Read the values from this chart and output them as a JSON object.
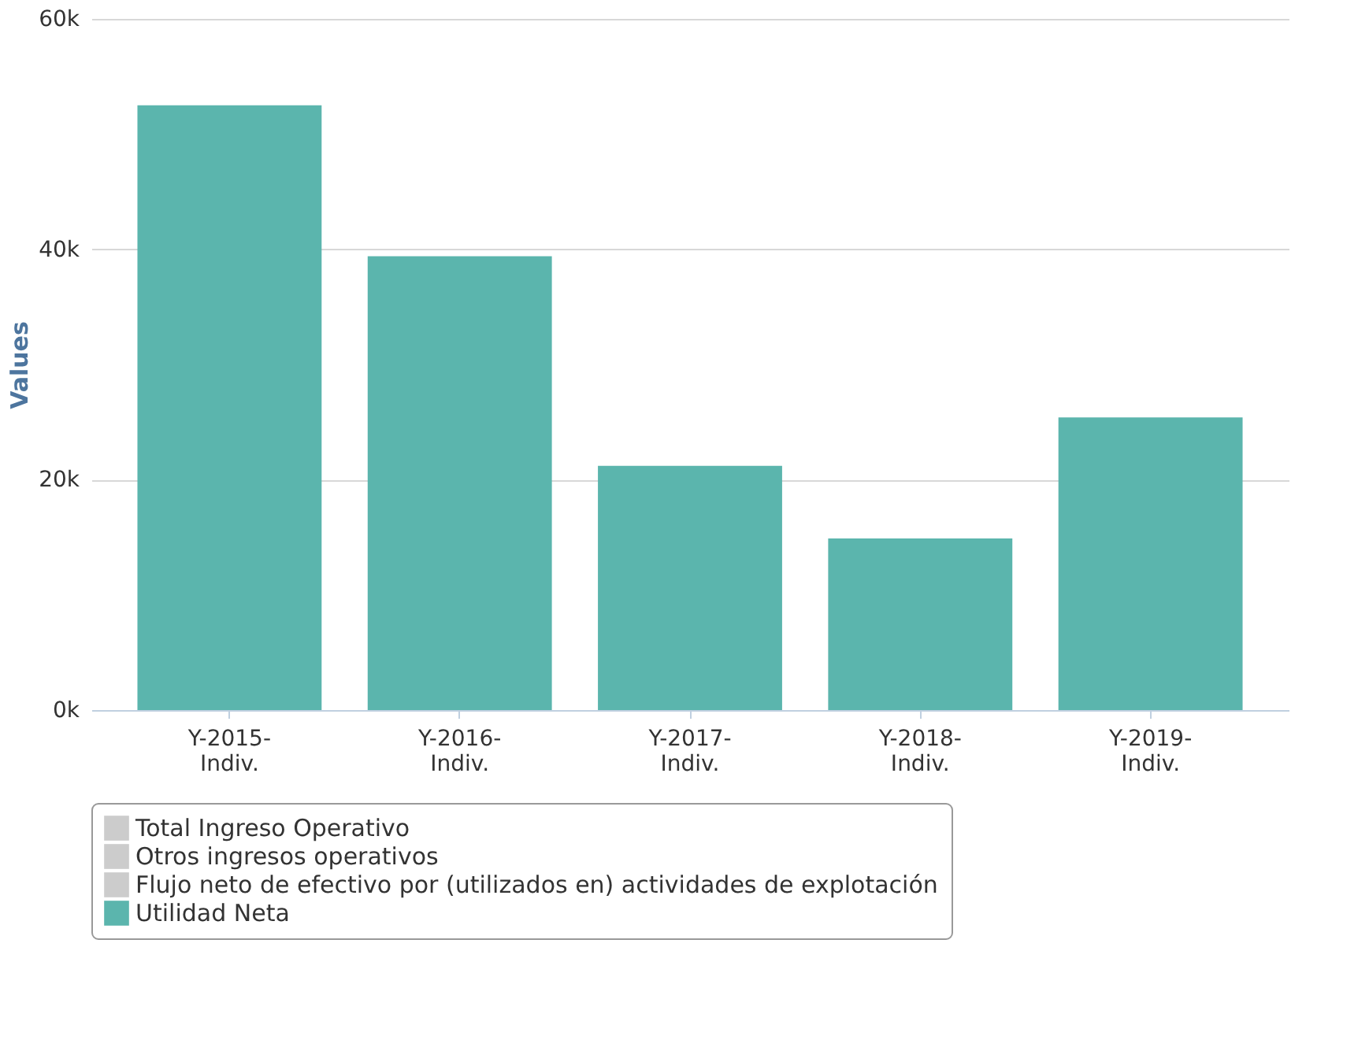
{
  "chart_data": {
    "type": "bar",
    "ylabel": "Values",
    "categories": [
      "Y-2015-Indiv.",
      "Y-2016-Indiv.",
      "Y-2017-Indiv.",
      "Y-2018-Indiv.",
      "Y-2019-Indiv."
    ],
    "series": [
      {
        "name": "Total Ingreso Operativo",
        "color": "#cccccc",
        "values": [
          null,
          null,
          null,
          null,
          null
        ]
      },
      {
        "name": "Otros ingresos operativos",
        "color": "#cccccc",
        "values": [
          null,
          null,
          null,
          null,
          null
        ]
      },
      {
        "name": "Flujo neto de efectivo por (utilizados en) actividades de explotación",
        "color": "#cccccc",
        "values": [
          null,
          null,
          null,
          null,
          null
        ]
      },
      {
        "name": "Utilidad Neta",
        "color": "#5bb5ad",
        "values": [
          52500,
          39400,
          21200,
          14900,
          25400
        ]
      }
    ],
    "ylim": [
      0,
      60000
    ],
    "yticks": [
      {
        "value": 0,
        "label": "0k"
      },
      {
        "value": 20000,
        "label": "20k"
      },
      {
        "value": 40000,
        "label": "40k"
      },
      {
        "value": 60000,
        "label": "60k"
      }
    ],
    "grid": "y",
    "legend": "bottom"
  }
}
